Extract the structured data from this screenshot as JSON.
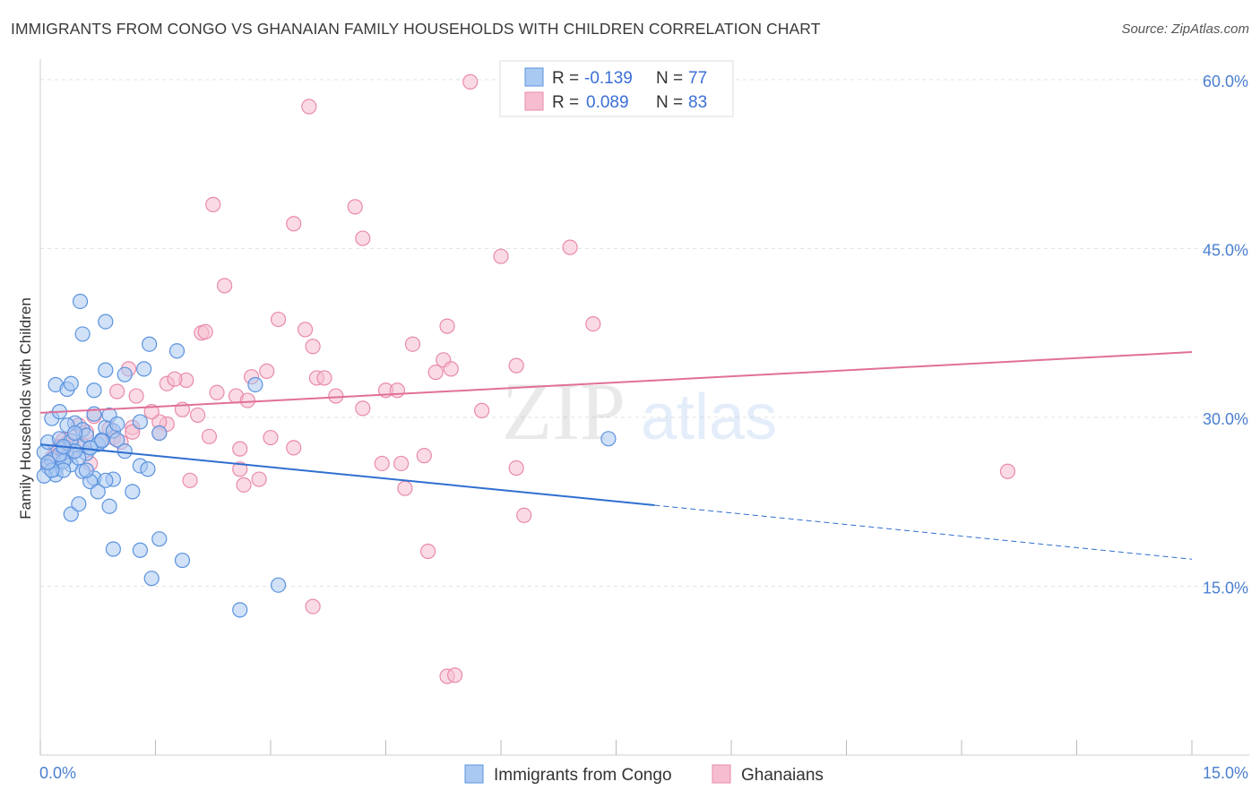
{
  "title": "IMMIGRANTS FROM CONGO VS GHANAIAN FAMILY HOUSEHOLDS WITH CHILDREN CORRELATION CHART",
  "source": "Source: ZipAtlas.com",
  "colors": {
    "blue_fill": "#a9c8f2",
    "blue_stroke": "#5b93de",
    "blue_line": "#2f6fd0",
    "pink_fill": "#f6bdd0",
    "pink_stroke": "#e98aaa",
    "pink_line": "#e07098",
    "axis_label": "#4a7fd0",
    "grid": "#e3e3e3"
  },
  "legend": {
    "rows": [
      {
        "r_label": "R =",
        "r_value": "-0.139",
        "n_label": "N =",
        "n_value": "77"
      },
      {
        "r_label": "R =",
        "r_value": "0.089",
        "n_label": "N =",
        "n_value": "83"
      }
    ]
  },
  "chart_data": {
    "type": "scatter",
    "title": "IMMIGRANTS FROM CONGO VS GHANAIAN FAMILY HOUSEHOLDS WITH CHILDREN CORRELATION CHART",
    "xlabel": "",
    "ylabel": "Family Households with Children",
    "xlim": [
      0,
      15
    ],
    "ylim": [
      0,
      61.5
    ],
    "x_tick_labels": [
      "0.0%",
      "15.0%"
    ],
    "y_ticks": [
      15,
      30,
      45,
      60
    ],
    "y_tick_labels": [
      "15.0%",
      "30.0%",
      "45.0%",
      "60.0%"
    ],
    "grid": true,
    "legend_position": "top-center",
    "watermark": "ZIPatlas",
    "series": [
      {
        "name": "Immigrants from Congo",
        "r": -0.139,
        "n": 77,
        "trend": {
          "x0": 0,
          "y0": 27.6,
          "x1": 8.0,
          "y1": 22.2,
          "dash_x1": 15,
          "dash_y1": 17.4
        },
        "points": [
          [
            0.05,
            26.9
          ],
          [
            0.1,
            27.8
          ],
          [
            0.15,
            26.2
          ],
          [
            0.2,
            25.4
          ],
          [
            0.25,
            28.1
          ],
          [
            0.3,
            27.2
          ],
          [
            0.35,
            26.5
          ],
          [
            0.4,
            25.8
          ],
          [
            0.45,
            29.5
          ],
          [
            0.5,
            27.5
          ],
          [
            0.55,
            28.9
          ],
          [
            0.6,
            26.8
          ],
          [
            0.65,
            27.3
          ],
          [
            0.7,
            24.6
          ],
          [
            0.75,
            27.6
          ],
          [
            0.8,
            28.0
          ],
          [
            0.85,
            29.1
          ],
          [
            0.9,
            30.2
          ],
          [
            0.95,
            28.8
          ],
          [
            0.1,
            25.6
          ],
          [
            0.2,
            24.9
          ],
          [
            0.3,
            26.1
          ],
          [
            0.4,
            27.9
          ],
          [
            0.5,
            26.4
          ],
          [
            0.15,
            29.9
          ],
          [
            0.25,
            30.5
          ],
          [
            0.35,
            29.3
          ],
          [
            0.45,
            27.0
          ],
          [
            0.55,
            25.2
          ],
          [
            0.65,
            24.3
          ],
          [
            0.75,
            23.4
          ],
          [
            0.05,
            24.8
          ],
          [
            0.2,
            32.9
          ],
          [
            0.35,
            32.5
          ],
          [
            0.4,
            33.0
          ],
          [
            0.7,
            32.4
          ],
          [
            0.85,
            34.2
          ],
          [
            1.1,
            33.8
          ],
          [
            1.35,
            34.3
          ],
          [
            0.55,
            37.4
          ],
          [
            0.85,
            38.5
          ],
          [
            0.52,
            40.3
          ],
          [
            1.42,
            36.5
          ],
          [
            1.78,
            35.9
          ],
          [
            2.8,
            32.9
          ],
          [
            1.55,
            28.6
          ],
          [
            1.3,
            29.6
          ],
          [
            1.0,
            28.0
          ],
          [
            0.9,
            22.1
          ],
          [
            0.4,
            21.4
          ],
          [
            0.5,
            22.3
          ],
          [
            1.2,
            23.4
          ],
          [
            0.95,
            18.3
          ],
          [
            1.3,
            18.2
          ],
          [
            1.55,
            19.2
          ],
          [
            1.85,
            17.3
          ],
          [
            1.45,
            15.7
          ],
          [
            3.1,
            15.1
          ],
          [
            2.6,
            12.9
          ],
          [
            1.3,
            25.7
          ],
          [
            1.4,
            25.4
          ],
          [
            0.6,
            25.3
          ],
          [
            0.3,
            25.3
          ],
          [
            0.95,
            24.5
          ],
          [
            1.1,
            27.0
          ],
          [
            0.7,
            30.3
          ],
          [
            1.0,
            29.4
          ],
          [
            0.8,
            27.9
          ],
          [
            7.4,
            28.1
          ],
          [
            0.25,
            26.7
          ],
          [
            0.15,
            25.3
          ],
          [
            0.6,
            28.4
          ],
          [
            0.3,
            27.4
          ],
          [
            0.45,
            28.6
          ],
          [
            0.85,
            24.4
          ],
          [
            0.65,
            27.3
          ],
          [
            0.1,
            26.0
          ]
        ]
      },
      {
        "name": "Ghanaians",
        "r": 0.089,
        "n": 83,
        "trend": {
          "x0": 0,
          "y0": 30.4,
          "x1": 15,
          "y1": 35.8
        },
        "points": [
          [
            5.6,
            59.8
          ],
          [
            3.5,
            57.6
          ],
          [
            2.25,
            48.9
          ],
          [
            4.1,
            48.7
          ],
          [
            3.3,
            47.2
          ],
          [
            4.2,
            45.9
          ],
          [
            6.0,
            44.3
          ],
          [
            6.9,
            45.1
          ],
          [
            2.4,
            41.7
          ],
          [
            3.1,
            38.7
          ],
          [
            3.45,
            37.8
          ],
          [
            2.1,
            37.5
          ],
          [
            2.15,
            37.6
          ],
          [
            5.3,
            38.1
          ],
          [
            7.2,
            38.3
          ],
          [
            4.85,
            36.5
          ],
          [
            5.25,
            35.1
          ],
          [
            6.2,
            34.6
          ],
          [
            3.85,
            31.9
          ],
          [
            2.75,
            33.6
          ],
          [
            2.95,
            34.1
          ],
          [
            3.6,
            33.5
          ],
          [
            1.9,
            33.3
          ],
          [
            1.65,
            33.0
          ],
          [
            1.75,
            33.4
          ],
          [
            1.15,
            34.3
          ],
          [
            1.0,
            32.3
          ],
          [
            1.25,
            31.9
          ],
          [
            2.3,
            32.2
          ],
          [
            2.55,
            31.9
          ],
          [
            2.7,
            31.5
          ],
          [
            4.5,
            32.4
          ],
          [
            4.65,
            32.4
          ],
          [
            5.15,
            34.0
          ],
          [
            5.35,
            34.3
          ],
          [
            4.2,
            30.8
          ],
          [
            5.75,
            30.6
          ],
          [
            1.65,
            29.4
          ],
          [
            1.55,
            29.6
          ],
          [
            2.05,
            30.2
          ],
          [
            1.45,
            30.5
          ],
          [
            1.2,
            29.1
          ],
          [
            0.9,
            29.0
          ],
          [
            0.7,
            30.1
          ],
          [
            0.6,
            28.7
          ],
          [
            0.5,
            29.3
          ],
          [
            0.45,
            28.3
          ],
          [
            0.3,
            28.0
          ],
          [
            0.25,
            27.4
          ],
          [
            0.2,
            27.0
          ],
          [
            0.15,
            26.4
          ],
          [
            0.1,
            25.9
          ],
          [
            0.35,
            27.7
          ],
          [
            0.55,
            27.5
          ],
          [
            0.8,
            27.9
          ],
          [
            0.95,
            28.2
          ],
          [
            1.05,
            27.8
          ],
          [
            1.2,
            28.7
          ],
          [
            1.55,
            28.6
          ],
          [
            2.2,
            28.3
          ],
          [
            2.6,
            27.2
          ],
          [
            3.0,
            28.2
          ],
          [
            3.3,
            27.3
          ],
          [
            2.6,
            25.4
          ],
          [
            2.65,
            24.0
          ],
          [
            2.85,
            24.5
          ],
          [
            1.95,
            24.4
          ],
          [
            4.45,
            25.9
          ],
          [
            4.7,
            25.9
          ],
          [
            5.0,
            26.6
          ],
          [
            6.2,
            25.5
          ],
          [
            4.75,
            23.7
          ],
          [
            6.3,
            21.3
          ],
          [
            5.05,
            18.1
          ],
          [
            3.55,
            13.2
          ],
          [
            5.3,
            7.0
          ],
          [
            5.4,
            7.1
          ],
          [
            12.6,
            25.2
          ],
          [
            3.55,
            36.3
          ],
          [
            3.7,
            33.5
          ],
          [
            0.65,
            25.9
          ],
          [
            0.4,
            26.9
          ],
          [
            1.85,
            30.7
          ]
        ]
      }
    ]
  },
  "bottom_legend": [
    {
      "label": "Immigrants from Congo"
    },
    {
      "label": "Ghanaians"
    }
  ]
}
